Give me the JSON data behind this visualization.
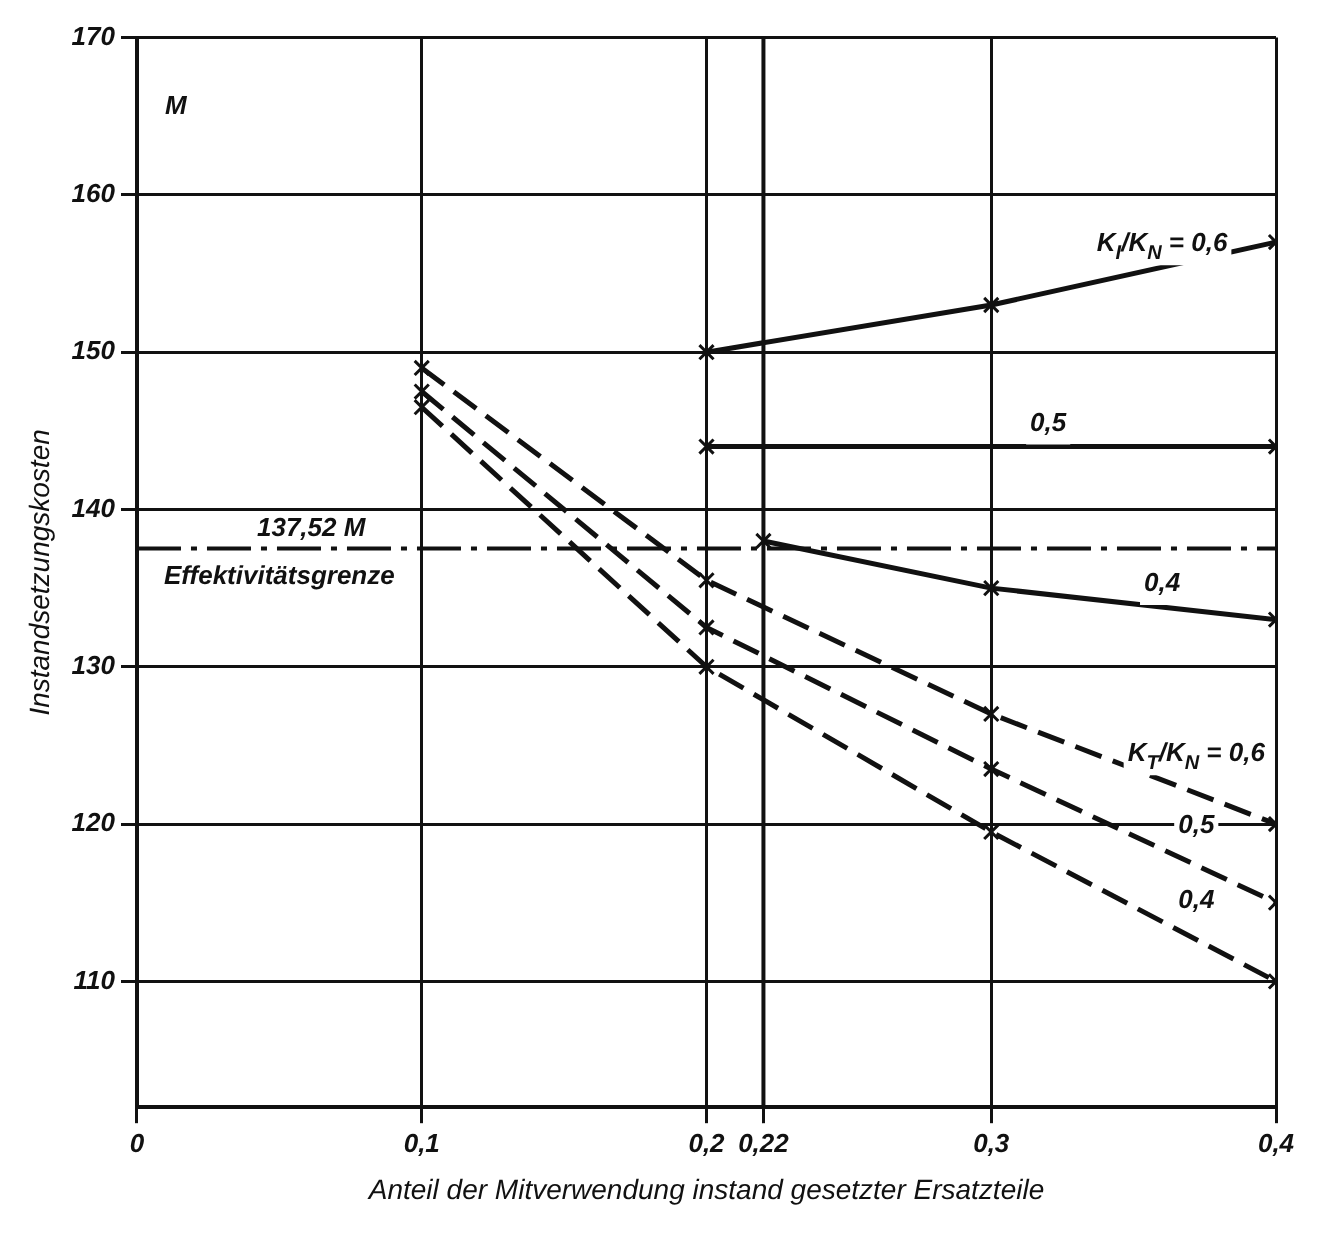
{
  "chart_data": {
    "type": "line",
    "xlabel": "Anteil der Mitverwendung instand gesetzter Ersatzteile",
    "ylabel": "Instandsetzungskosten",
    "xlim": [
      0,
      0.4
    ],
    "xticks": [
      {
        "value": 0,
        "label": "0"
      },
      {
        "value": 0.1,
        "label": "0,1"
      },
      {
        "value": 0.2,
        "label": "0,2"
      },
      {
        "value": 0.22,
        "label": "0,22"
      },
      {
        "value": 0.3,
        "label": "0,3"
      },
      {
        "value": 0.4,
        "label": "0,4"
      }
    ],
    "ylim": [
      102,
      170
    ],
    "yticks": [
      110,
      120,
      130,
      140,
      150,
      160,
      170
    ],
    "grid": true,
    "legend": false,
    "marker": "cross",
    "series": [
      {
        "name": "K$_{I}$/K$_{N}$ = 0,6",
        "color": "#111111",
        "line_style": "solid",
        "x": [
          0.2,
          0.3,
          0.4
        ],
        "values": [
          150,
          153,
          157
        ]
      },
      {
        "name": "0,5",
        "color": "#111111",
        "line_style": "solid",
        "x": [
          0.2,
          0.4
        ],
        "values": [
          144,
          144
        ]
      },
      {
        "name": "0,4",
        "color": "#111111",
        "line_style": "solid",
        "x": [
          0.22,
          0.3,
          0.4
        ],
        "values": [
          138,
          135,
          133
        ]
      },
      {
        "name": "K$_{T}$/K$_{N}$ = 0,6",
        "color": "#111111",
        "line_style": "dashed",
        "x": [
          0.1,
          0.2,
          0.3,
          0.4
        ],
        "values": [
          149,
          135.5,
          127,
          120
        ]
      },
      {
        "name": "0,5",
        "color": "#111111",
        "line_style": "dashed",
        "x": [
          0.1,
          0.2,
          0.3,
          0.4
        ],
        "values": [
          147.5,
          132.5,
          123.5,
          115
        ]
      },
      {
        "name": "0,4",
        "color": "#111111",
        "line_style": "dashed",
        "x": [
          0.1,
          0.2,
          0.3,
          0.4
        ],
        "values": [
          146.5,
          130,
          119.5,
          110
        ]
      }
    ],
    "ref_lines": [
      {
        "axis": "y",
        "value": 137.52,
        "label": "137,52 M",
        "line_style": "dashed",
        "color": "#111111"
      },
      {
        "axis": "x",
        "value": 0.22,
        "color": "#111111"
      }
    ],
    "annotations": [
      "M",
      {
        "text": "Effektivitätsgrenze",
        "x": 0.05,
        "y": 137.52
      }
    ]
  }
}
